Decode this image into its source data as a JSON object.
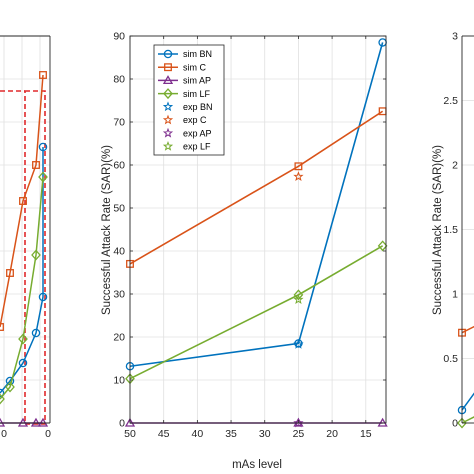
{
  "chart_data": [
    {
      "type": "line",
      "position": "left (cropped)",
      "x_tick_labels": [
        "0",
        "0"
      ],
      "series": [
        {
          "name": "sim BN",
          "color": "#0072BD",
          "marker": "circle",
          "y_guess": [
            4.5,
            4.7,
            5.0,
            5.5,
            6.1,
            8.6
          ]
        },
        {
          "name": "sim C",
          "color": "#D95319",
          "marker": "square",
          "y_guess": [
            5.6,
            6.5,
            7.7,
            8.3,
            9.8
          ]
        },
        {
          "name": "sim LF",
          "color": "#77AC30",
          "marker": "diamond",
          "y_guess": [
            4.4,
            4.6,
            5.4,
            6.8,
            8.1
          ]
        },
        {
          "name": "sim AP",
          "color": "#7E2F8E",
          "marker": "triangle",
          "y_guess": [
            4.0,
            4.0,
            4.0,
            4.0
          ]
        }
      ],
      "annotation": "dashed red rectangle"
    },
    {
      "type": "line",
      "position": "center",
      "title": "",
      "xlabel": "mAs level",
      "ylabel": "Successful Attack Rate (SAR)(%)",
      "xlim": [
        50,
        12
      ],
      "x_reversed": true,
      "ylim": [
        0,
        90
      ],
      "x_ticks": [
        50,
        45,
        40,
        35,
        30,
        25,
        20,
        15
      ],
      "y_ticks": [
        0,
        10,
        20,
        30,
        40,
        50,
        60,
        70,
        80,
        90
      ],
      "grid": true,
      "legend_position": "top-left",
      "x": [
        50,
        25,
        12.5
      ],
      "series": [
        {
          "name": "sim BN",
          "color": "#0072BD",
          "marker": "circle",
          "values": [
            13.2,
            18.5,
            88.5
          ]
        },
        {
          "name": "sim C",
          "color": "#D95319",
          "marker": "square",
          "values": [
            37.0,
            59.7,
            72.5
          ]
        },
        {
          "name": "sim AP",
          "color": "#7E2F8E",
          "marker": "triangle",
          "values": [
            0,
            0,
            0
          ]
        },
        {
          "name": "sim LF",
          "color": "#77AC30",
          "marker": "diamond",
          "values": [
            10.3,
            29.8,
            41.2
          ]
        },
        {
          "name": "exp BN",
          "color": "#0072BD",
          "marker": "star",
          "values": [
            null,
            18.3,
            null
          ]
        },
        {
          "name": "exp C",
          "color": "#D95319",
          "marker": "star",
          "values": [
            null,
            57.3,
            null
          ]
        },
        {
          "name": "exp AP",
          "color": "#7E2F8E",
          "marker": "star",
          "values": [
            null,
            0,
            null
          ]
        },
        {
          "name": "exp LF",
          "color": "#77AC30",
          "marker": "star",
          "values": [
            null,
            28.7,
            null
          ]
        }
      ]
    },
    {
      "type": "line",
      "position": "right (cropped)",
      "ylabel": "Successful Attack Rate (SAR)(%)",
      "ylim": [
        0,
        3
      ],
      "y_ticks": [
        "0",
        "0.5",
        "1",
        "1.5",
        "2",
        "2.5",
        "3"
      ],
      "grid": true,
      "series": [
        {
          "name": "sim C",
          "color": "#D95319",
          "marker": "square",
          "values": [
            0.7
          ]
        },
        {
          "name": "sim BN",
          "color": "#0072BD",
          "marker": "circle",
          "values": [
            0.1
          ]
        },
        {
          "name": "sim LF",
          "color": "#77AC30",
          "marker": "diamond",
          "values": [
            0
          ]
        }
      ]
    }
  ]
}
